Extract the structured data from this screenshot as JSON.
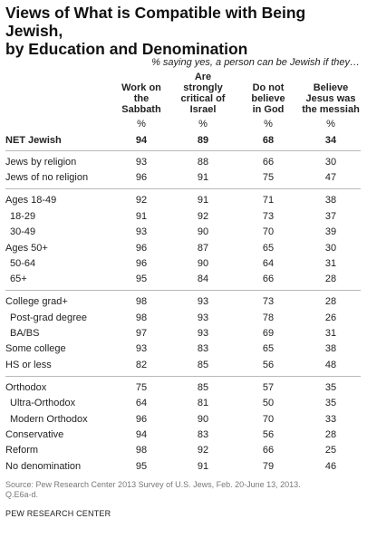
{
  "header": {
    "title_line1": "Views of What is Compatible with Being Jewish,",
    "title_line2": "by Education and Denomination",
    "subtitle": "% saying yes, a person can be Jewish if they…"
  },
  "chart_data": {
    "type": "table",
    "columns": [
      {
        "lines": [
          "Work on",
          "the",
          "Sabbath"
        ],
        "unit": "%"
      },
      {
        "lines": [
          "Are",
          "strongly",
          "critical of",
          "Israel"
        ],
        "unit": "%"
      },
      {
        "lines": [
          "Do not",
          "believe",
          "in God"
        ],
        "unit": "%"
      },
      {
        "lines": [
          "Believe",
          "Jesus was",
          "the messiah"
        ],
        "unit": "%"
      }
    ],
    "rows": [
      {
        "label": "NET Jewish",
        "values": [
          94,
          89,
          68,
          34
        ]
      },
      {
        "label": "Jews by religion",
        "values": [
          93,
          88,
          66,
          30
        ]
      },
      {
        "label": "Jews of no religion",
        "values": [
          96,
          91,
          75,
          47
        ]
      },
      {
        "label": "Ages 18-49",
        "values": [
          92,
          91,
          71,
          38
        ]
      },
      {
        "label": "18-29",
        "values": [
          91,
          92,
          73,
          37
        ]
      },
      {
        "label": "30-49",
        "values": [
          93,
          90,
          70,
          39
        ]
      },
      {
        "label": "Ages 50+",
        "values": [
          96,
          87,
          65,
          30
        ]
      },
      {
        "label": "50-64",
        "values": [
          96,
          90,
          64,
          31
        ]
      },
      {
        "label": "65+",
        "values": [
          95,
          84,
          66,
          28
        ]
      },
      {
        "label": "College grad+",
        "values": [
          98,
          93,
          73,
          28
        ]
      },
      {
        "label": "Post-grad degree",
        "values": [
          98,
          93,
          78,
          26
        ]
      },
      {
        "label": "BA/BS",
        "values": [
          97,
          93,
          69,
          31
        ]
      },
      {
        "label": "Some college",
        "values": [
          93,
          83,
          65,
          38
        ]
      },
      {
        "label": "HS or less",
        "values": [
          82,
          85,
          56,
          48
        ]
      },
      {
        "label": "Orthodox",
        "values": [
          75,
          85,
          57,
          35
        ]
      },
      {
        "label": "Ultra-Orthodox",
        "values": [
          64,
          81,
          50,
          35
        ]
      },
      {
        "label": "Modern Orthodox",
        "values": [
          96,
          90,
          70,
          33
        ]
      },
      {
        "label": "Conservative",
        "values": [
          94,
          83,
          56,
          28
        ]
      },
      {
        "label": "Reform",
        "values": [
          98,
          92,
          66,
          25
        ]
      },
      {
        "label": "No denomination",
        "values": [
          95,
          91,
          79,
          46
        ]
      }
    ]
  },
  "footer": {
    "source_line1": "Source: Pew Research Center 2013 Survey of U.S. Jews, Feb. 20-June 13, 2013.",
    "source_line2": "Q.E6a-d.",
    "organization": "PEW RESEARCH CENTER"
  }
}
